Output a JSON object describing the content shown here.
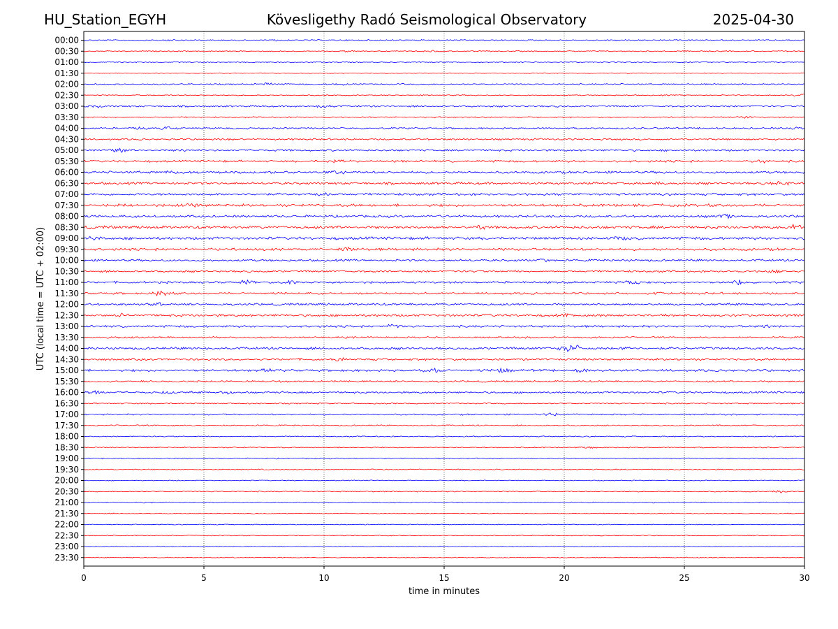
{
  "header": {
    "station": "HU_Station_EGYH",
    "observatory": "Kövesligethy Radó Seismological Observatory",
    "date": "2025-04-30"
  },
  "chart_data": {
    "type": "line",
    "title": "Kövesligethy Radó Seismological Observatory",
    "xlabel": "time in minutes",
    "ylabel": "UTC (local time = UTC + 02:00)",
    "xlim": [
      0,
      30
    ],
    "x_ticks": [
      0,
      5,
      10,
      15,
      20,
      25,
      30
    ],
    "grid": "vertical dotted lines at 5-minute ticks",
    "colors": {
      "even_rows": "#0000ff",
      "odd_rows": "#ff0000"
    },
    "rows": [
      {
        "label": "00:00",
        "amp": 1.2,
        "events": [
          [
            3.5,
            1.5
          ],
          [
            8.0,
            1.5
          ]
        ]
      },
      {
        "label": "00:30",
        "amp": 1.0,
        "events": [
          [
            11.0,
            1.5
          ],
          [
            14.5,
            1.5
          ]
        ]
      },
      {
        "label": "01:00",
        "amp": 1.0,
        "events": []
      },
      {
        "label": "01:30",
        "amp": 0.8,
        "events": []
      },
      {
        "label": "02:00",
        "amp": 1.3,
        "events": [
          [
            7.7,
            3.0
          ],
          [
            10.8,
            3.0
          ]
        ]
      },
      {
        "label": "02:30",
        "amp": 1.0,
        "events": [
          [
            29.9,
            3.0
          ]
        ]
      },
      {
        "label": "03:00",
        "amp": 1.6,
        "events": [
          [
            0.5,
            3.0
          ],
          [
            10.0,
            3.0
          ]
        ]
      },
      {
        "label": "03:30",
        "amp": 1.2,
        "events": [
          [
            27.5,
            2.0
          ]
        ]
      },
      {
        "label": "04:00",
        "amp": 1.6,
        "events": [
          [
            2.3,
            2.5
          ],
          [
            3.5,
            3.0
          ],
          [
            29.5,
            2.0
          ]
        ]
      },
      {
        "label": "04:30",
        "amp": 1.6,
        "events": [
          [
            6.0,
            2.0
          ]
        ]
      },
      {
        "label": "05:00",
        "amp": 1.8,
        "events": [
          [
            1.5,
            4.0
          ],
          [
            4.0,
            4.0
          ]
        ]
      },
      {
        "label": "05:30",
        "amp": 2.0,
        "events": [
          [
            10.5,
            3.0
          ],
          [
            28.2,
            3.0
          ]
        ]
      },
      {
        "label": "06:00",
        "amp": 2.2,
        "events": [
          [
            10.5,
            3.5
          ],
          [
            3.7,
            2.5
          ]
        ]
      },
      {
        "label": "06:30",
        "amp": 2.2,
        "events": [
          [
            29.0,
            4.0
          ],
          [
            24.0,
            3.0
          ]
        ]
      },
      {
        "label": "07:00",
        "amp": 2.2,
        "events": [
          [
            10.0,
            3.5
          ]
        ]
      },
      {
        "label": "07:30",
        "amp": 2.5,
        "events": [
          [
            1.5,
            3.0
          ],
          [
            4.5,
            3.0
          ]
        ]
      },
      {
        "label": "08:00",
        "amp": 2.2,
        "events": [
          [
            4.7,
            4.0
          ],
          [
            26.7,
            4.0
          ]
        ]
      },
      {
        "label": "08:30",
        "amp": 2.6,
        "events": [
          [
            16.5,
            3.5
          ],
          [
            29.6,
            10.0
          ]
        ]
      },
      {
        "label": "09:00",
        "amp": 2.6,
        "events": [
          [
            0.3,
            3.5
          ],
          [
            22.5,
            3.0
          ]
        ]
      },
      {
        "label": "09:30",
        "amp": 2.4,
        "events": [
          [
            11.0,
            4.0
          ]
        ]
      },
      {
        "label": "10:00",
        "amp": 2.0,
        "events": [
          [
            19.2,
            3.0
          ]
        ]
      },
      {
        "label": "10:30",
        "amp": 1.8,
        "events": [
          [
            28.8,
            3.0
          ]
        ]
      },
      {
        "label": "11:00",
        "amp": 2.0,
        "events": [
          [
            6.8,
            4.0
          ],
          [
            8.6,
            4.0
          ],
          [
            22.8,
            4.0
          ],
          [
            27.3,
            7.0
          ]
        ]
      },
      {
        "label": "11:30",
        "amp": 2.0,
        "events": [
          [
            3.2,
            6.0
          ],
          [
            24.0,
            3.0
          ]
        ]
      },
      {
        "label": "12:00",
        "amp": 2.0,
        "events": [
          [
            3.0,
            3.5
          ]
        ]
      },
      {
        "label": "12:30",
        "amp": 2.2,
        "events": [
          [
            20.0,
            3.0
          ],
          [
            1.5,
            3.0
          ]
        ]
      },
      {
        "label": "13:00",
        "amp": 2.0,
        "events": [
          [
            12.9,
            5.0
          ],
          [
            28.5,
            3.5
          ]
        ]
      },
      {
        "label": "13:30",
        "amp": 1.6,
        "events": []
      },
      {
        "label": "14:00",
        "amp": 2.2,
        "events": [
          [
            20.0,
            6.0
          ],
          [
            20.5,
            7.0
          ],
          [
            22.5,
            5.0
          ]
        ]
      },
      {
        "label": "14:30",
        "amp": 2.0,
        "events": [
          [
            10.5,
            3.0
          ]
        ]
      },
      {
        "label": "15:00",
        "amp": 2.2,
        "events": [
          [
            7.5,
            4.0
          ],
          [
            14.5,
            5.0
          ],
          [
            17.5,
            4.0
          ],
          [
            20.7,
            4.0
          ]
        ]
      },
      {
        "label": "15:30",
        "amp": 1.6,
        "events": []
      },
      {
        "label": "16:00",
        "amp": 1.8,
        "events": [
          [
            0.5,
            3.5
          ],
          [
            3.5,
            3.5
          ],
          [
            6.0,
            3.0
          ]
        ]
      },
      {
        "label": "16:30",
        "amp": 1.2,
        "events": []
      },
      {
        "label": "17:00",
        "amp": 1.4,
        "events": [
          [
            19.5,
            3.0
          ]
        ]
      },
      {
        "label": "17:30",
        "amp": 1.2,
        "events": []
      },
      {
        "label": "18:00",
        "amp": 1.0,
        "events": []
      },
      {
        "label": "18:30",
        "amp": 1.0,
        "events": [
          [
            21.0,
            2.0
          ]
        ]
      },
      {
        "label": "19:00",
        "amp": 1.0,
        "events": []
      },
      {
        "label": "19:30",
        "amp": 1.0,
        "events": []
      },
      {
        "label": "20:00",
        "amp": 0.8,
        "events": []
      },
      {
        "label": "20:30",
        "amp": 1.0,
        "events": [
          [
            29.0,
            2.0
          ]
        ]
      },
      {
        "label": "21:00",
        "amp": 1.0,
        "events": []
      },
      {
        "label": "21:30",
        "amp": 0.8,
        "events": []
      },
      {
        "label": "22:00",
        "amp": 0.8,
        "events": []
      },
      {
        "label": "22:30",
        "amp": 0.8,
        "events": []
      },
      {
        "label": "23:00",
        "amp": 0.8,
        "events": []
      },
      {
        "label": "23:30",
        "amp": 0.8,
        "events": []
      }
    ]
  }
}
